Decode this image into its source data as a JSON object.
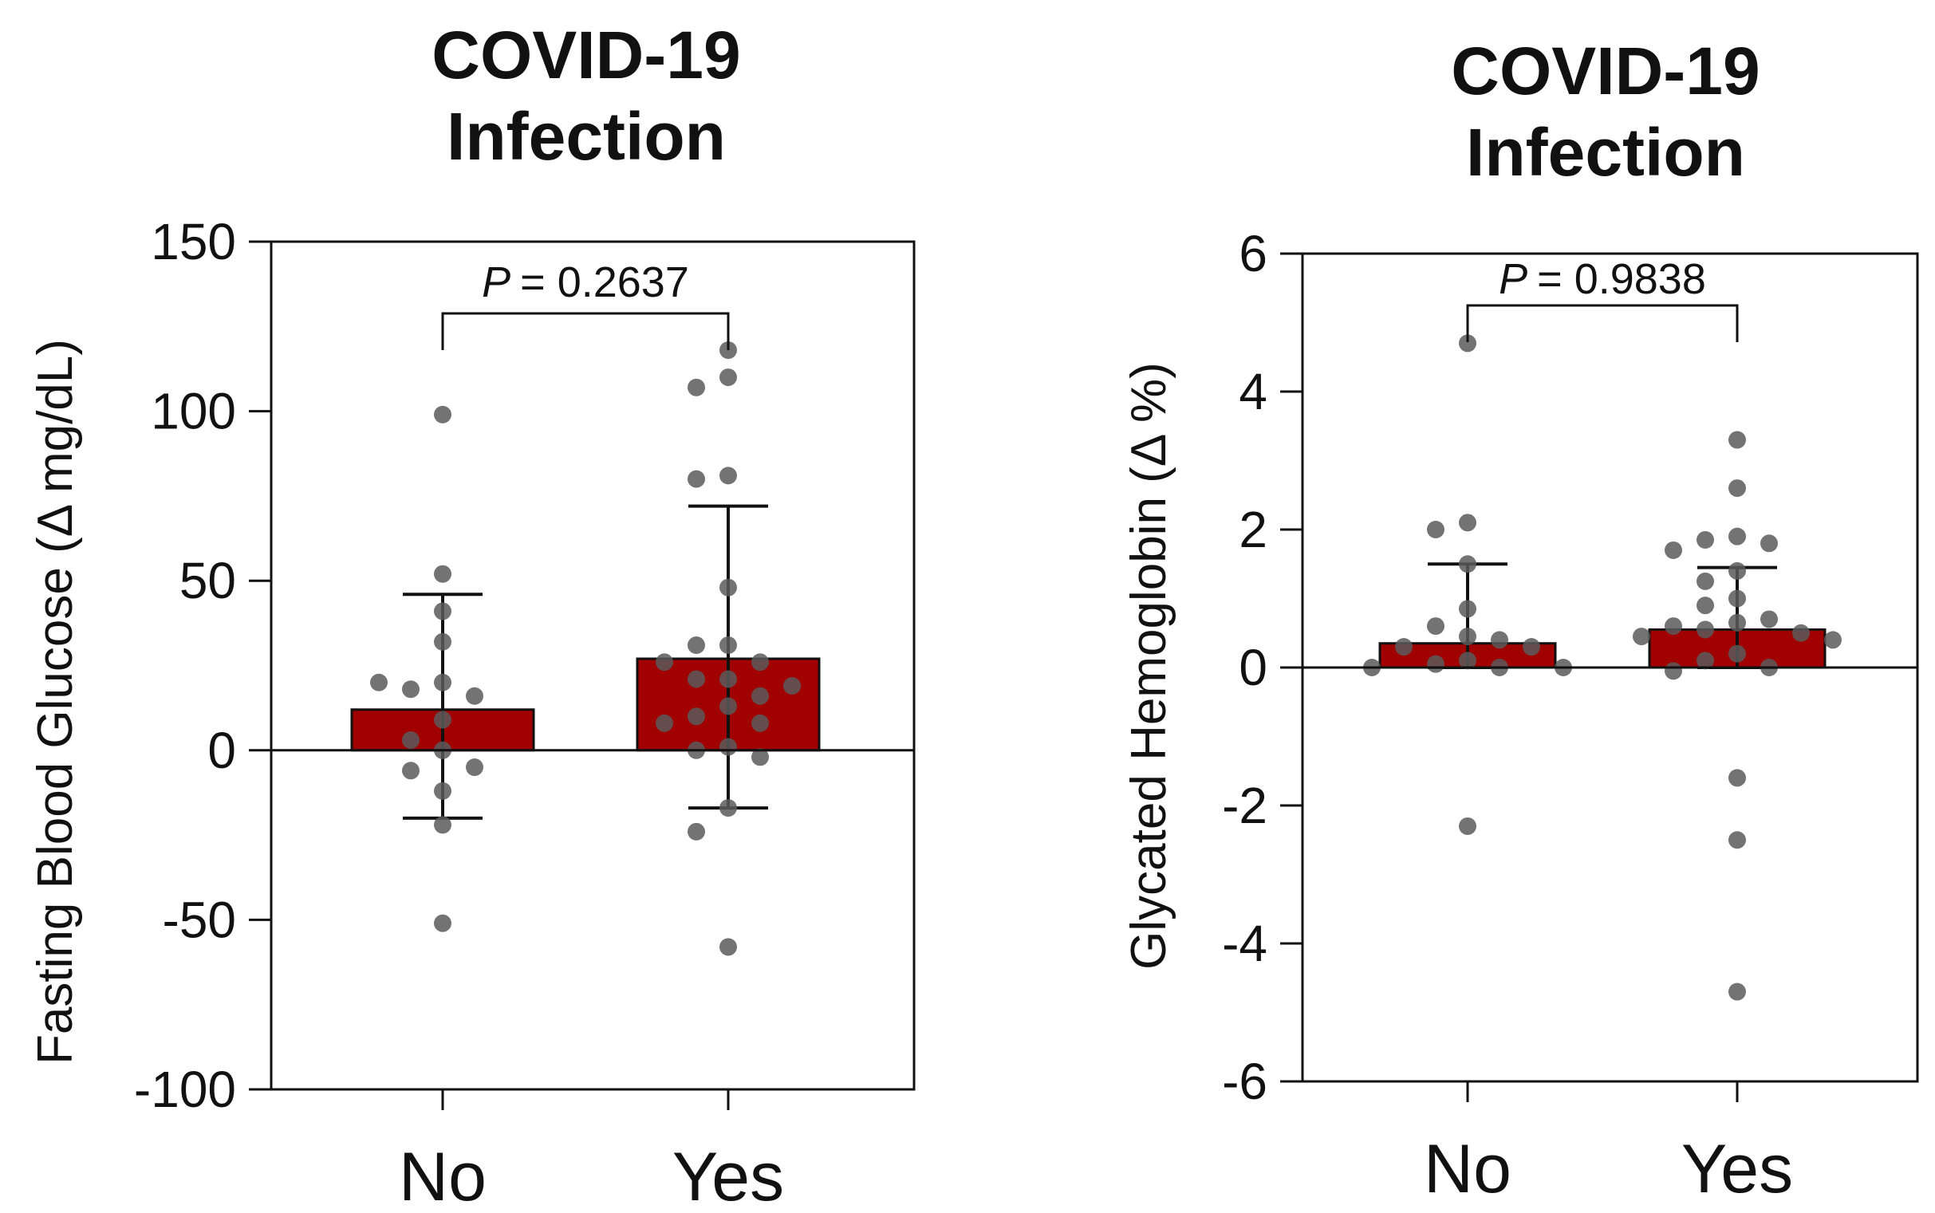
{
  "chart_data": [
    {
      "type": "bar",
      "title": [
        "COVID-19",
        "Infection"
      ],
      "ylabel": "Fasting Blood Glucose (Δ mg/dL)",
      "xlabel": "",
      "categories": [
        "No",
        "Yes"
      ],
      "yticks": [
        "150",
        "100",
        "50",
        "0",
        "-50",
        "-100"
      ],
      "ylim": [
        -100,
        150
      ],
      "values": [
        12,
        27
      ],
      "error_upper": [
        46,
        72
      ],
      "error_lower": [
        -20,
        -17
      ],
      "p_label": "P",
      "p_value": "= 0.2637",
      "bar_color": "#a00000",
      "points": [
        [
          99,
          52,
          41,
          32,
          20,
          18,
          16,
          20,
          9,
          3,
          0,
          -6,
          -5,
          -12,
          -22,
          -51
        ],
        [
          118,
          110,
          107,
          81,
          80,
          48,
          31,
          31,
          26,
          26,
          21,
          21,
          19,
          16,
          13,
          10,
          8,
          8,
          1,
          0,
          -2,
          -17,
          -24,
          -58
        ]
      ]
    },
    {
      "type": "bar",
      "title": [
        "COVID-19",
        "Infection"
      ],
      "ylabel": "Glycated Hemoglobin (Δ %)",
      "xlabel": "",
      "categories": [
        "No",
        "Yes"
      ],
      "yticks": [
        "6",
        "4",
        "2",
        "0",
        "-2",
        "-4",
        "-6"
      ],
      "ylim": [
        -6,
        6
      ],
      "values": [
        0.35,
        0.55
      ],
      "error_upper": [
        1.5,
        1.45
      ],
      "error_lower": [
        0,
        0
      ],
      "p_label": "P",
      "p_value": "= 0.9838",
      "bar_color": "#a00000",
      "points": [
        [
          4.7,
          2.1,
          2.0,
          1.5,
          0.85,
          0.6,
          0.45,
          0.4,
          0.3,
          0.3,
          0.1,
          0.05,
          0.0,
          0.0,
          0.0,
          -2.3
        ],
        [
          3.3,
          2.6,
          1.9,
          1.85,
          1.8,
          1.7,
          1.4,
          1.25,
          1.0,
          0.9,
          0.7,
          0.65,
          0.6,
          0.55,
          0.5,
          0.45,
          0.4,
          0.2,
          0.1,
          0.0,
          -0.05,
          -1.6,
          -2.5,
          -4.7
        ]
      ]
    }
  ]
}
